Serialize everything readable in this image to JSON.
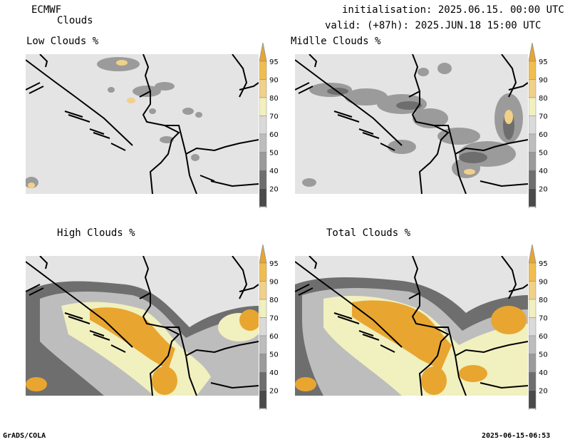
{
  "header": {
    "model": "ECMWF",
    "product": "Clouds",
    "init": "initialisation: 2025.06.15. 00:00 UTC",
    "valid": "valid: (+87h): 2025.JUN.18 15:00 UTC"
  },
  "panels": [
    {
      "title": "Low Clouds %"
    },
    {
      "title": "Midlle Clouds %"
    },
    {
      "title": "High Clouds %"
    },
    {
      "title": "Total Clouds %"
    }
  ],
  "colorbar": {
    "levels": [
      "95",
      "90",
      "80",
      "70",
      "60",
      "50",
      "40",
      "20"
    ],
    "colors": [
      "#e8a630",
      "#f0be50",
      "#f1d089",
      "#f1f0bf",
      "#dadada",
      "#bdbdbd",
      "#9b9b9b",
      "#6e6e6e",
      "#4a4a4a"
    ]
  },
  "footer": {
    "left": "GrADS/COLA",
    "right": "2025-06-15-06:53"
  }
}
